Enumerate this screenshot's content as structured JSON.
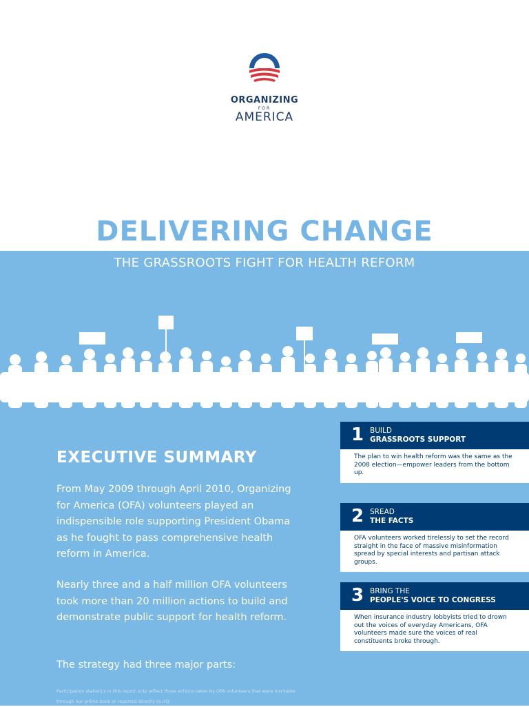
{
  "logo": {
    "org_line1": "ORGANIZING",
    "org_line2": "FOR",
    "org_line3": "AMERICA",
    "colors": {
      "blue": "#1f5aa0",
      "red": "#d9363e",
      "navy": "#1f3f6e"
    }
  },
  "title": "DELIVERING CHANGE",
  "subtitle": "THE GRASSROOTS FIGHT FOR HEALTH REFORM",
  "executive_summary": {
    "heading": "EXECUTIVE SUMMARY",
    "paragraph1": "From May 2009 through April 2010, Organizing for America (OFA) volunteers played an indispensible role supporting President Obama as he fought to pass comprehensive health reform in America.",
    "paragraph2": "Nearly three and a half million OFA volunteers took more than 20 million actions to build and demonstrate public support for health reform.",
    "paragraph3": "The strategy had three major parts:",
    "footnote": "Participation statistics in this report only reflect those actions taken by OFA volunteers that were trackable through our online tools or reported directly to HQ."
  },
  "steps": [
    {
      "number": "1",
      "top": "BUILD",
      "bottom": "GRASSROOTS SUPPORT",
      "text": "The plan to win health reform was the same as the 2008 election—empower leaders from the bottom up."
    },
    {
      "number": "2",
      "top": "SREAD",
      "bottom": "THE FACTS",
      "text": "OFA volunteers worked tirelessly to set the record straight in the face of massive misinformation spread by special interests and partisan attack groups."
    },
    {
      "number": "3",
      "top": "BRING THE",
      "bottom": "PEOPLE'S VOICE TO CONGRESS",
      "text": "When insurance industry lobbyists tried to drown out the voices of everyday Americans, OFA volunteers made sure the voices of real constituents broke through."
    }
  ],
  "colors": {
    "accent_blue": "#7ab8e5",
    "title_blue": "#74b5e6",
    "navy": "#003c73"
  }
}
